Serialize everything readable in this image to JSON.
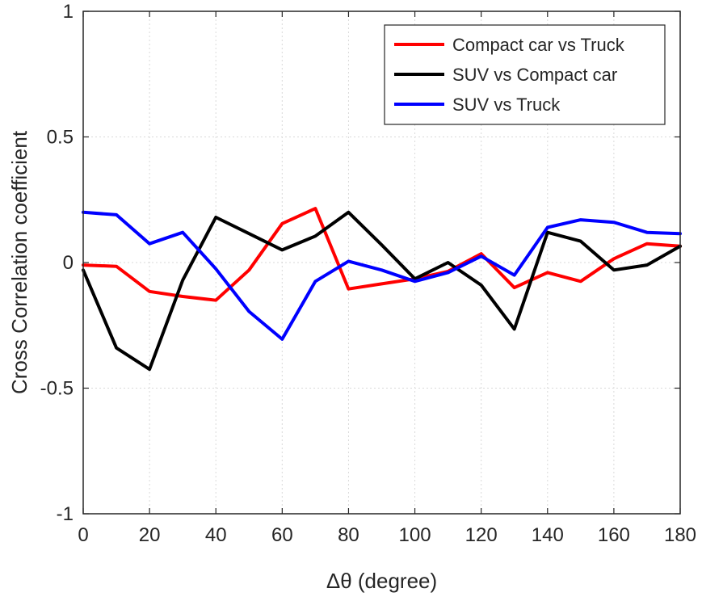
{
  "chart_data": {
    "type": "line",
    "xlabel": "Δθ (degree)",
    "ylabel": "Cross Correlation coefficient",
    "xlim": [
      0,
      180
    ],
    "ylim": [
      -1,
      1
    ],
    "xticks": [
      0,
      20,
      40,
      60,
      80,
      100,
      120,
      140,
      160,
      180
    ],
    "yticks": [
      -1,
      -0.5,
      0,
      0.5,
      1
    ],
    "grid": true,
    "legend_position": "top-right",
    "x": [
      0,
      10,
      20,
      30,
      40,
      50,
      60,
      70,
      80,
      90,
      100,
      110,
      120,
      130,
      140,
      150,
      160,
      170,
      180
    ],
    "series": [
      {
        "name": "Compact car vs Truck",
        "color": "#ff0000",
        "values": [
          -0.01,
          -0.015,
          -0.115,
          -0.135,
          -0.15,
          -0.03,
          0.155,
          0.215,
          -0.105,
          -0.085,
          -0.065,
          -0.035,
          0.035,
          -0.1,
          -0.04,
          -0.075,
          0.015,
          0.075,
          0.065
        ]
      },
      {
        "name": "SUV vs Compact car",
        "color": "#000000",
        "values": [
          -0.03,
          -0.34,
          -0.425,
          -0.07,
          0.18,
          0.115,
          0.05,
          0.105,
          0.2,
          0.07,
          -0.065,
          0.0,
          -0.09,
          -0.265,
          0.12,
          0.085,
          -0.03,
          -0.01,
          0.065
        ]
      },
      {
        "name": "SUV vs Truck",
        "color": "#0000ff",
        "values": [
          0.2,
          0.19,
          0.075,
          0.12,
          -0.025,
          -0.195,
          -0.305,
          -0.075,
          0.005,
          -0.03,
          -0.075,
          -0.04,
          0.025,
          -0.05,
          0.14,
          0.17,
          0.16,
          0.12,
          0.115
        ]
      }
    ]
  }
}
